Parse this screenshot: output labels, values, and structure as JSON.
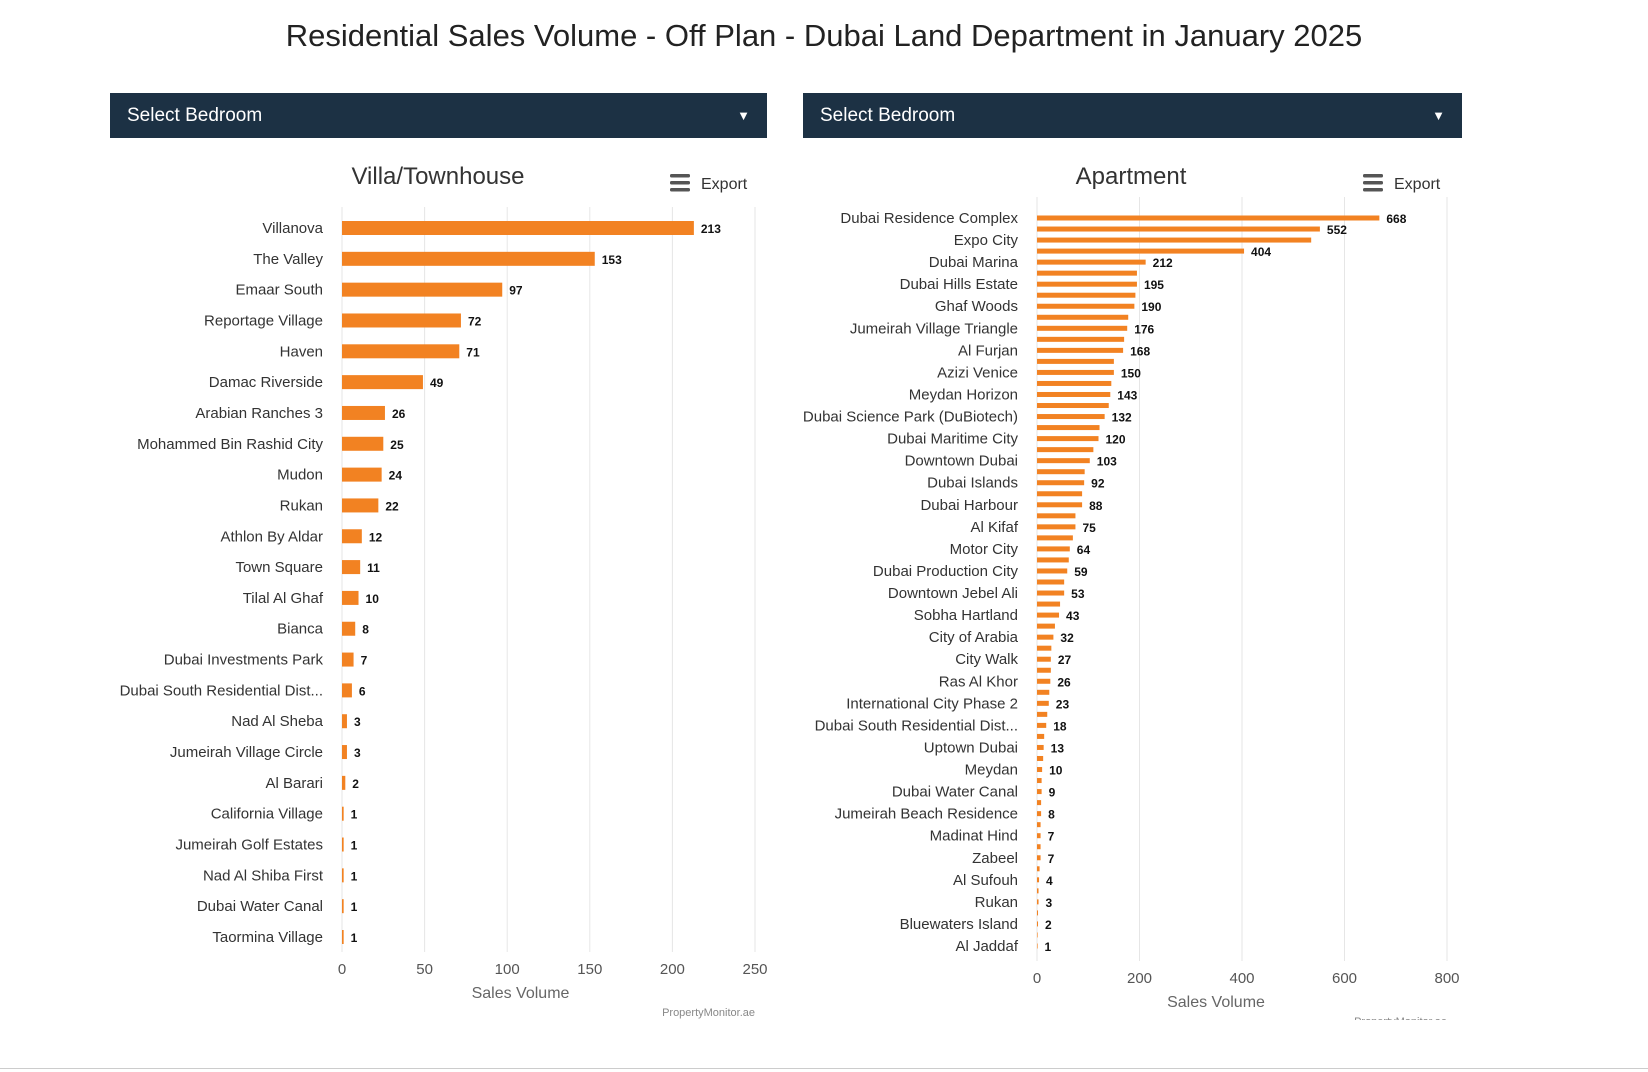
{
  "page_title": "Residential Sales Volume - Off Plan - Dubai Land Department in January 2025",
  "colors": {
    "bar": "#f28222",
    "dropdown_bg": "#1c3144"
  },
  "dropdowns": [
    {
      "label": "Select Bedroom",
      "icon": "caret-down-icon"
    },
    {
      "label": "Select Bedroom",
      "icon": "caret-down-icon"
    }
  ],
  "export_label": "Export",
  "chart_data": [
    {
      "type": "bar",
      "orientation": "horizontal",
      "title": "Villa/Townhouse",
      "xlabel": "Sales Volume",
      "ylabel": "",
      "xlim": [
        0,
        250
      ],
      "ticks": [
        0,
        50,
        100,
        150,
        200,
        250
      ],
      "credit": "PropertyMonitor.ae",
      "categories": [
        "Villanova",
        "The Valley",
        "Emaar South",
        "Reportage Village",
        "Haven",
        "Damac Riverside",
        "Arabian Ranches 3",
        "Mohammed Bin Rashid City",
        "Mudon",
        "Rukan",
        "Athlon By Aldar",
        "Town Square",
        "Tilal Al Ghaf",
        "Bianca",
        "Dubai Investments Park",
        "Dubai South Residential Dist...",
        "Nad Al Sheba",
        "Jumeirah Village Circle",
        "Al Barari",
        "California Village",
        "Jumeirah Golf Estates",
        "Nad Al Shiba First",
        "Dubai Water Canal",
        "Taormina Village"
      ],
      "values": [
        213,
        153,
        97,
        72,
        71,
        49,
        26,
        25,
        24,
        22,
        12,
        11,
        10,
        8,
        7,
        6,
        3,
        3,
        2,
        1,
        1,
        1,
        1,
        1
      ]
    },
    {
      "type": "bar",
      "orientation": "horizontal",
      "title": "Apartment",
      "xlabel": "Sales Volume",
      "ylabel": "",
      "xlim": [
        0,
        800
      ],
      "ticks": [
        0,
        200,
        400,
        600,
        800
      ],
      "credit": "PropertyMonitor.ae",
      "categories": [
        "Dubai Residence Complex",
        "",
        "Expo City",
        "",
        "Dubai Marina",
        "",
        "Dubai Hills Estate",
        "",
        "Ghaf Woods",
        "",
        "Jumeirah Village Triangle",
        "",
        "Al Furjan",
        "",
        "Azizi Venice",
        "",
        "Meydan Horizon",
        "",
        "Dubai Science Park (DuBiotech)",
        "",
        "Dubai Maritime City",
        "",
        "Downtown Dubai",
        "",
        "Dubai Islands",
        "",
        "Dubai Harbour",
        "",
        "Al Kifaf",
        "",
        "Motor City",
        "",
        "Dubai Production City",
        "",
        "Downtown Jebel Ali",
        "",
        "Sobha Hartland",
        "",
        "City of Arabia",
        "",
        "City Walk",
        "",
        "Ras Al Khor",
        "",
        "International City Phase 2",
        "",
        "Dubai South Residential Dist...",
        "",
        "Uptown Dubai",
        "",
        "Meydan",
        "",
        "Dubai Water Canal",
        "",
        "Jumeirah Beach Residence",
        "",
        "Madinat Hind",
        "",
        "Zabeel",
        "",
        "Al Sufouh",
        "",
        "Rukan",
        "",
        "Bluewaters Island",
        "",
        "Al Jaddaf"
      ],
      "values": [
        668,
        552,
        535,
        404,
        212,
        195,
        195,
        192,
        190,
        178,
        176,
        170,
        168,
        150,
        150,
        145,
        143,
        140,
        132,
        122,
        120,
        110,
        103,
        93,
        92,
        88,
        88,
        75,
        75,
        70,
        64,
        62,
        59,
        53,
        53,
        45,
        43,
        35,
        32,
        28,
        27,
        27,
        26,
        24,
        23,
        20,
        18,
        14,
        13,
        12,
        10,
        9,
        9,
        8,
        8,
        7,
        7,
        7,
        7,
        5,
        4,
        3,
        3,
        2,
        2,
        1,
        1
      ],
      "data_labels": [
        "668",
        "552",
        "",
        "404",
        "212",
        "",
        "195",
        "",
        "190",
        "",
        "176",
        "",
        "168",
        "",
        "150",
        "",
        "143",
        "",
        "132",
        "",
        "120",
        "",
        "103",
        "",
        "92",
        "",
        "88",
        "",
        "75",
        "",
        "64",
        "",
        "59",
        "",
        "53",
        "",
        "43",
        "",
        "32",
        "",
        "27",
        "",
        "26",
        "",
        "23",
        "",
        "18",
        "",
        "13",
        "",
        "10",
        "",
        "9",
        "",
        "8",
        "",
        "7",
        "",
        "7",
        "",
        "4",
        "",
        "3",
        "",
        "2",
        "",
        "1"
      ]
    }
  ]
}
